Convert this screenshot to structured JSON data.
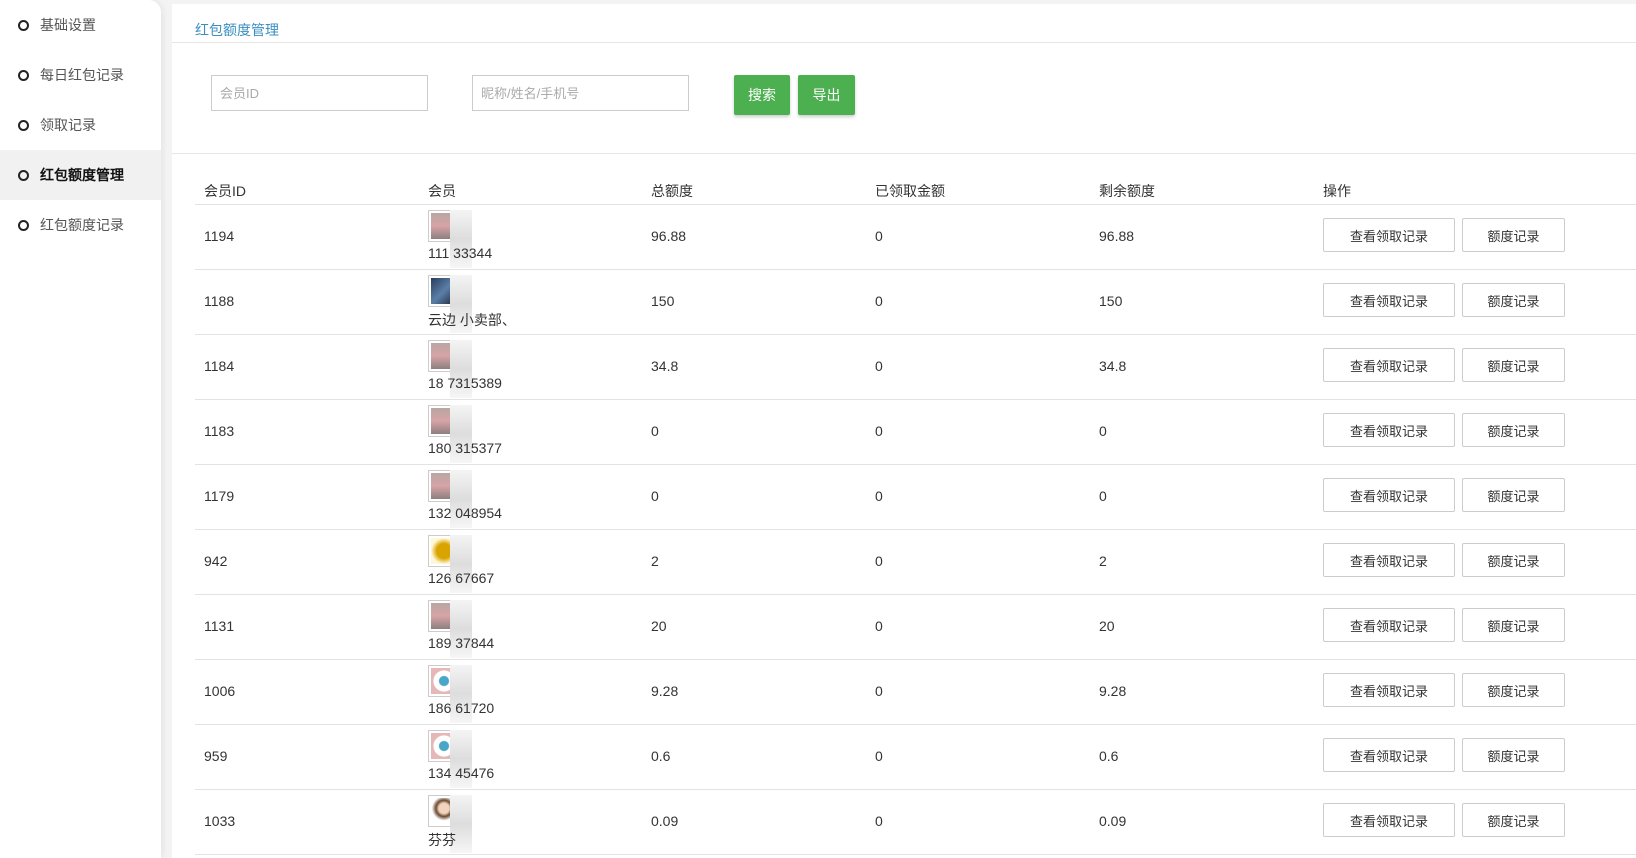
{
  "sidebar": {
    "items": [
      {
        "label": "基础设置",
        "active": false
      },
      {
        "label": "每日红包记录",
        "active": false
      },
      {
        "label": "领取记录",
        "active": false
      },
      {
        "label": "红包额度管理",
        "active": true
      },
      {
        "label": "红包额度记录",
        "active": false
      }
    ]
  },
  "breadcrumb": "红包额度管理",
  "search": {
    "member_id_placeholder": "会员ID",
    "name_placeholder": "昵称/姓名/手机号",
    "search_label": "搜索",
    "export_label": "导出",
    "accent": "#4caf50"
  },
  "table": {
    "headers": [
      "会员ID",
      "会员",
      "总额度",
      "已领取金额",
      "剩余额度",
      "操作"
    ],
    "action_labels": [
      "查看领取记录",
      "额度记录"
    ],
    "rows": [
      {
        "id": "1194",
        "name": "111  33344",
        "avatar": "pink",
        "total": "96.88",
        "received": "0",
        "remaining": "96.88"
      },
      {
        "id": "1188",
        "name": "云边  小卖部、",
        "avatar": "dark",
        "total": "150",
        "received": "0",
        "remaining": "150"
      },
      {
        "id": "1184",
        "name": "18  7315389",
        "avatar": "pink",
        "total": "34.8",
        "received": "0",
        "remaining": "34.8"
      },
      {
        "id": "1183",
        "name": "180  315377",
        "avatar": "pink",
        "total": "0",
        "received": "0",
        "remaining": "0"
      },
      {
        "id": "1179",
        "name": "132  048954",
        "avatar": "pink",
        "total": "0",
        "received": "0",
        "remaining": "0"
      },
      {
        "id": "942",
        "name": "126  67667",
        "avatar": "gold",
        "total": "2",
        "received": "0",
        "remaining": "2"
      },
      {
        "id": "1131",
        "name": "189  37844",
        "avatar": "pink",
        "total": "20",
        "received": "0",
        "remaining": "20"
      },
      {
        "id": "1006",
        "name": "186  61720",
        "avatar": "badge",
        "total": "9.28",
        "received": "0",
        "remaining": "9.28"
      },
      {
        "id": "959",
        "name": "134  45476",
        "avatar": "badge",
        "total": "0.6",
        "received": "0",
        "remaining": "0.6"
      },
      {
        "id": "1033",
        "name": "芬芬",
        "avatar": "girl",
        "total": "0.09",
        "received": "0",
        "remaining": "0.09"
      }
    ]
  }
}
